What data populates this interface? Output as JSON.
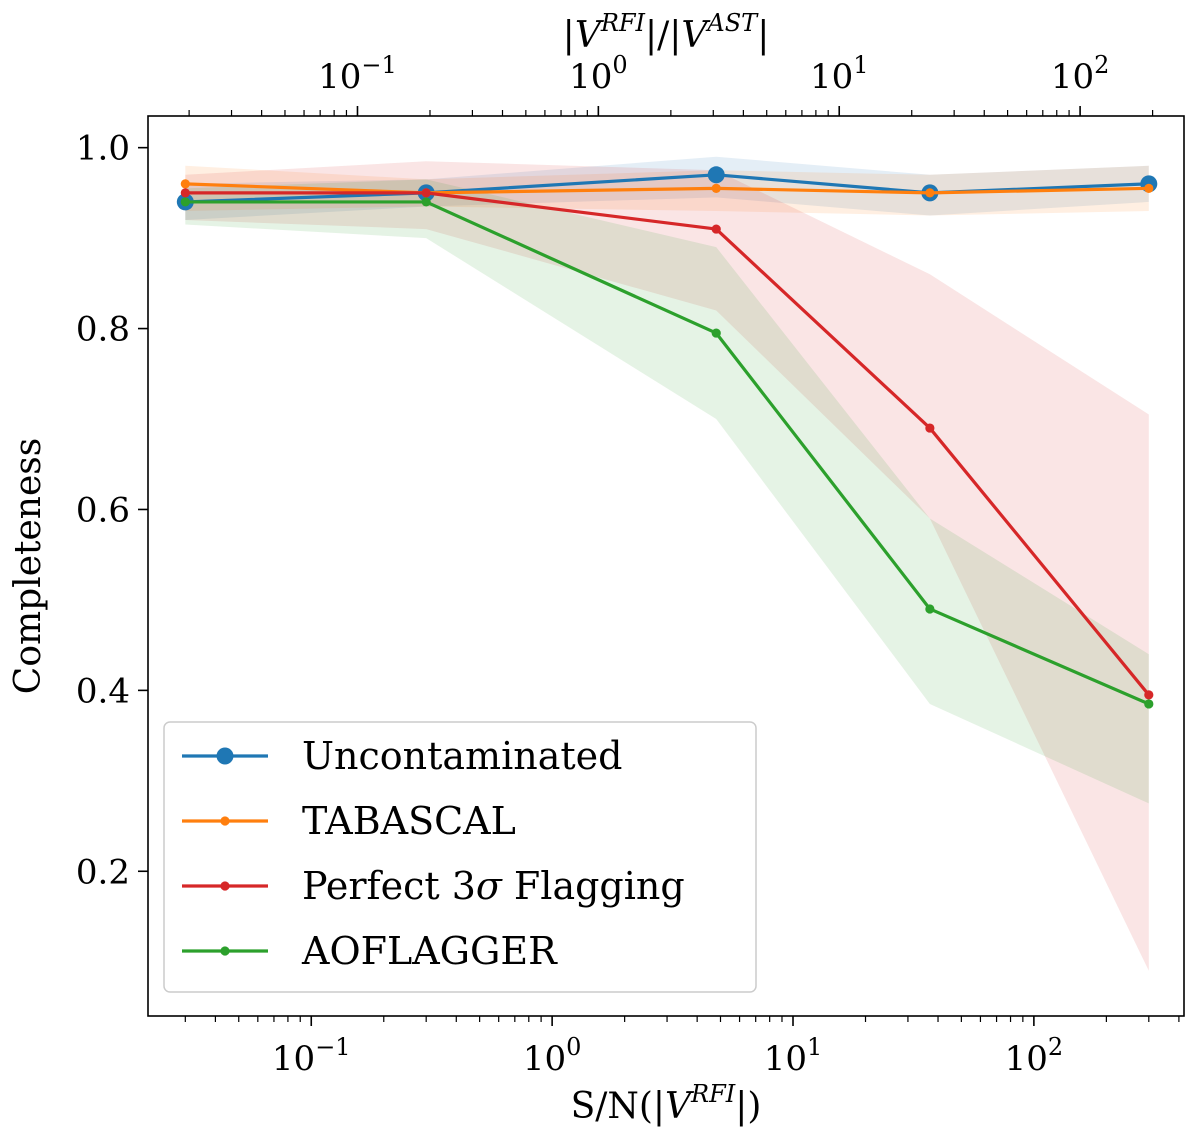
{
  "chart_data": {
    "type": "line",
    "ylabel": "Completeness",
    "xlabel": "S/N(|V^{RFI}|)",
    "xlabel_parts": {
      "prefix": "S/N(|",
      "var": "V",
      "sup": "RFI",
      "suffix": "|)"
    },
    "top_xlabel_parts": {
      "p1": "|",
      "v1": "V",
      "s1": "RFI",
      "mid": "|/|",
      "v2": "V",
      "s2": "AST",
      "end": "|"
    },
    "x_scale": "log",
    "xlim": [
      0.021,
      420
    ],
    "ylim": [
      0.04,
      1.035
    ],
    "top_xlim": [
      0.0135,
      270
    ],
    "x_ticks": [
      {
        "value": 0.1,
        "base": "10",
        "exp": "−1"
      },
      {
        "value": 1,
        "base": "10",
        "exp": "0"
      },
      {
        "value": 10,
        "base": "10",
        "exp": "1"
      },
      {
        "value": 100,
        "base": "10",
        "exp": "2"
      }
    ],
    "top_x_ticks": [
      {
        "value": 0.1,
        "base": "10",
        "exp": "−1"
      },
      {
        "value": 1,
        "base": "10",
        "exp": "0"
      },
      {
        "value": 10,
        "base": "10",
        "exp": "1"
      },
      {
        "value": 100,
        "base": "10",
        "exp": "2"
      }
    ],
    "y_ticks": [
      {
        "value": 0.2,
        "label": "0.2"
      },
      {
        "value": 0.4,
        "label": "0.4"
      },
      {
        "value": 0.6,
        "label": "0.6"
      },
      {
        "value": 0.8,
        "label": "0.8"
      },
      {
        "value": 1.0,
        "label": "1.0"
      }
    ],
    "x": [
      0.03,
      0.3,
      4.8,
      37,
      300
    ],
    "series": [
      {
        "name": "Uncontaminated",
        "color": "#1f77b4",
        "marker": "large",
        "values": [
          0.94,
          0.95,
          0.97,
          0.95,
          0.96
        ],
        "band_low": [
          0.92,
          0.935,
          0.945,
          0.925,
          0.94
        ],
        "band_high": [
          0.96,
          0.965,
          0.99,
          0.97,
          0.98
        ]
      },
      {
        "name": "TABASCAL",
        "color": "#ff7f0e",
        "marker": "small",
        "values": [
          0.96,
          0.95,
          0.955,
          0.95,
          0.955
        ],
        "band_low": [
          0.93,
          0.935,
          0.93,
          0.925,
          0.93
        ],
        "band_high": [
          0.98,
          0.965,
          0.975,
          0.97,
          0.98
        ]
      },
      {
        "name": "Perfect 3σ Flagging",
        "name_parts": {
          "before": "Perfect 3",
          "sigma": "σ",
          "after": " Flagging"
        },
        "color": "#d62728",
        "marker": "small",
        "values": [
          0.95,
          0.95,
          0.91,
          0.69,
          0.395
        ],
        "band_low": [
          0.92,
          0.91,
          0.82,
          0.59,
          0.09
        ],
        "band_high": [
          0.97,
          0.985,
          0.975,
          0.86,
          0.705
        ]
      },
      {
        "name": "AOFLAGGER",
        "color": "#2ca02c",
        "marker": "small",
        "values": [
          0.94,
          0.94,
          0.795,
          0.49,
          0.385
        ],
        "band_low": [
          0.915,
          0.9,
          0.7,
          0.385,
          0.275
        ],
        "band_high": [
          0.955,
          0.965,
          0.89,
          0.59,
          0.44
        ]
      }
    ],
    "legend_position": "lower-left"
  }
}
